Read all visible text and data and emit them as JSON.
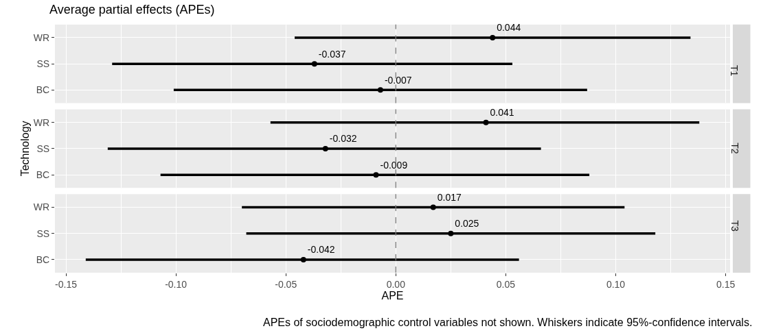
{
  "chart_data": [
    {
      "type": "scatter",
      "orientation": "horizontal",
      "title": "Average partial effects (APEs)",
      "categories": [
        "WR",
        "SS",
        "BC"
      ],
      "values": [
        0.044,
        -0.037,
        -0.007
      ],
      "errors": [
        [
          -0.046,
          0.134
        ],
        [
          -0.129,
          0.053
        ],
        [
          -0.101,
          0.087
        ]
      ],
      "color": "#000000",
      "marker": "circle",
      "data_labels": true,
      "xlim": [
        -0.155,
        0.152
      ],
      "xticks": [
        -0.15,
        -0.1,
        -0.05,
        0.0,
        0.05,
        0.1,
        0.15
      ],
      "grid": true,
      "tick_labels": "y",
      "ref_lines": [
        {
          "axis": "x",
          "value": 0,
          "color": "#7f7f7f",
          "line_style": "dashed"
        }
      ],
      "annotations": [
        "T1"
      ]
    },
    {
      "type": "scatter",
      "orientation": "horizontal",
      "ylabel": "Technology",
      "categories": [
        "WR",
        "SS",
        "BC"
      ],
      "values": [
        0.041,
        -0.032,
        -0.009
      ],
      "errors": [
        [
          -0.057,
          0.138
        ],
        [
          -0.131,
          0.066
        ],
        [
          -0.107,
          0.088
        ]
      ],
      "color": "#000000",
      "marker": "circle",
      "data_labels": true,
      "xlim": [
        -0.155,
        0.152
      ],
      "xticks": [
        -0.15,
        -0.1,
        -0.05,
        0.0,
        0.05,
        0.1,
        0.15
      ],
      "grid": true,
      "tick_labels": "y",
      "ref_lines": [
        {
          "axis": "x",
          "value": 0,
          "color": "#7f7f7f",
          "line_style": "dashed"
        }
      ],
      "annotations": [
        "T2"
      ]
    },
    {
      "type": "scatter",
      "orientation": "horizontal",
      "xlabel": "APE",
      "categories": [
        "WR",
        "SS",
        "BC"
      ],
      "values": [
        0.017,
        0.025,
        -0.042
      ],
      "errors": [
        [
          -0.07,
          0.104
        ],
        [
          -0.068,
          0.118
        ],
        [
          -0.141,
          0.056
        ]
      ],
      "color": "#000000",
      "marker": "circle",
      "data_labels": true,
      "xlim": [
        -0.155,
        0.152
      ],
      "xticks": [
        {
          "value": -0.15,
          "label": "-0.15"
        },
        {
          "value": -0.1,
          "label": "-0.10"
        },
        {
          "value": -0.05,
          "label": "-0.05"
        },
        {
          "value": 0.0,
          "label": "0.00"
        },
        {
          "value": 0.05,
          "label": "0.05"
        },
        {
          "value": 0.1,
          "label": "0.10"
        },
        {
          "value": 0.15,
          "label": "0.15"
        }
      ],
      "grid": true,
      "ref_lines": [
        {
          "axis": "x",
          "value": 0,
          "color": "#7f7f7f",
          "line_style": "dashed"
        }
      ],
      "annotations": [
        "T3",
        "APEs of sociodemographic control variables not shown. Whiskers indicate 95%-confidence intervals."
      ]
    }
  ]
}
